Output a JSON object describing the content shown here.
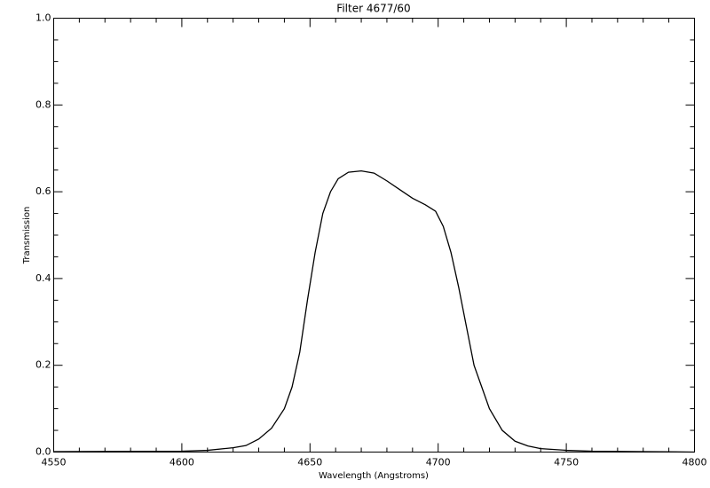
{
  "chart_data": {
    "type": "line",
    "title": "Filter 4677/60",
    "x_label": "Wavelength (Angstroms)",
    "y_label": "Transmission",
    "color": "#000000",
    "x": [
      4550,
      4600,
      4610,
      4620,
      4625,
      4630,
      4635,
      4640,
      4643,
      4646,
      4649,
      4652,
      4655,
      4658,
      4661,
      4665,
      4670,
      4675,
      4680,
      4685,
      4690,
      4695,
      4699,
      4702,
      4705,
      4708,
      4711,
      4714,
      4717,
      4720,
      4725,
      4730,
      4735,
      4740,
      4750,
      4760,
      4780,
      4800
    ],
    "values": [
      0.001,
      0.002,
      0.004,
      0.01,
      0.015,
      0.03,
      0.055,
      0.1,
      0.15,
      0.23,
      0.35,
      0.46,
      0.55,
      0.6,
      0.63,
      0.645,
      0.648,
      0.643,
      0.625,
      0.605,
      0.585,
      0.57,
      0.555,
      0.52,
      0.46,
      0.38,
      0.29,
      0.2,
      0.15,
      0.1,
      0.05,
      0.025,
      0.014,
      0.008,
      0.004,
      0.002,
      0.001,
      0.0
    ],
    "xlim": [
      4550,
      4800
    ],
    "ylim": [
      0,
      1
    ],
    "xticks": [
      4550,
      4600,
      4650,
      4700,
      4750,
      4800
    ],
    "yticks": [
      {
        "value": 0,
        "label": "0.0"
      },
      0.2,
      0.4,
      0.6,
      0.8,
      {
        "value": 1,
        "label": "1.0"
      }
    ],
    "xminor_ticks": [
      4560,
      4570,
      4580,
      4590,
      4610,
      4620,
      4630,
      4640,
      4660,
      4670,
      4680,
      4690,
      4710,
      4720,
      4730,
      4740,
      4760,
      4770,
      4780,
      4790
    ],
    "yminor_ticks": [
      0.05,
      0.1,
      0.15,
      0.25,
      0.3,
      0.35,
      0.45,
      0.5,
      0.55,
      0.65,
      0.7,
      0.75,
      0.85,
      0.9,
      0.95
    ],
    "grid": false
  }
}
